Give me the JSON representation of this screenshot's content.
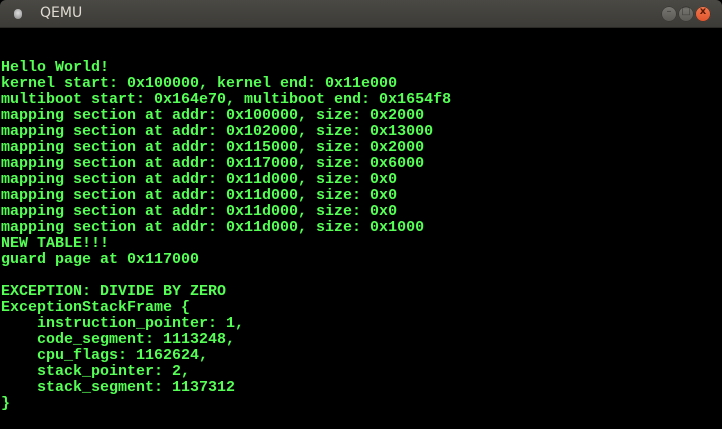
{
  "window": {
    "title": "QEMU",
    "icon": "qemu-app-icon"
  },
  "controls": {
    "minimize": "–",
    "maximize": "□",
    "close": "x"
  },
  "colors": {
    "text": "#55ff55",
    "background": "#000000",
    "close": "#e95420"
  },
  "console": {
    "lines": [
      "Hello World!",
      "kernel start: 0x100000, kernel end: 0x11e000",
      "multiboot start: 0x164e70, multiboot end: 0x1654f8",
      "mapping section at addr: 0x100000, size: 0x2000",
      "mapping section at addr: 0x102000, size: 0x13000",
      "mapping section at addr: 0x115000, size: 0x2000",
      "mapping section at addr: 0x117000, size: 0x6000",
      "mapping section at addr: 0x11d000, size: 0x0",
      "mapping section at addr: 0x11d000, size: 0x0",
      "mapping section at addr: 0x11d000, size: 0x0",
      "mapping section at addr: 0x11d000, size: 0x1000",
      "NEW TABLE!!!",
      "guard page at 0x117000",
      "",
      "EXCEPTION: DIVIDE BY ZERO",
      "ExceptionStackFrame {",
      "    instruction_pointer: 1,",
      "    code_segment: 1113248,",
      "    cpu_flags: 1162624,",
      "    stack_pointer: 2,",
      "    stack_segment: 1137312",
      "}"
    ]
  }
}
